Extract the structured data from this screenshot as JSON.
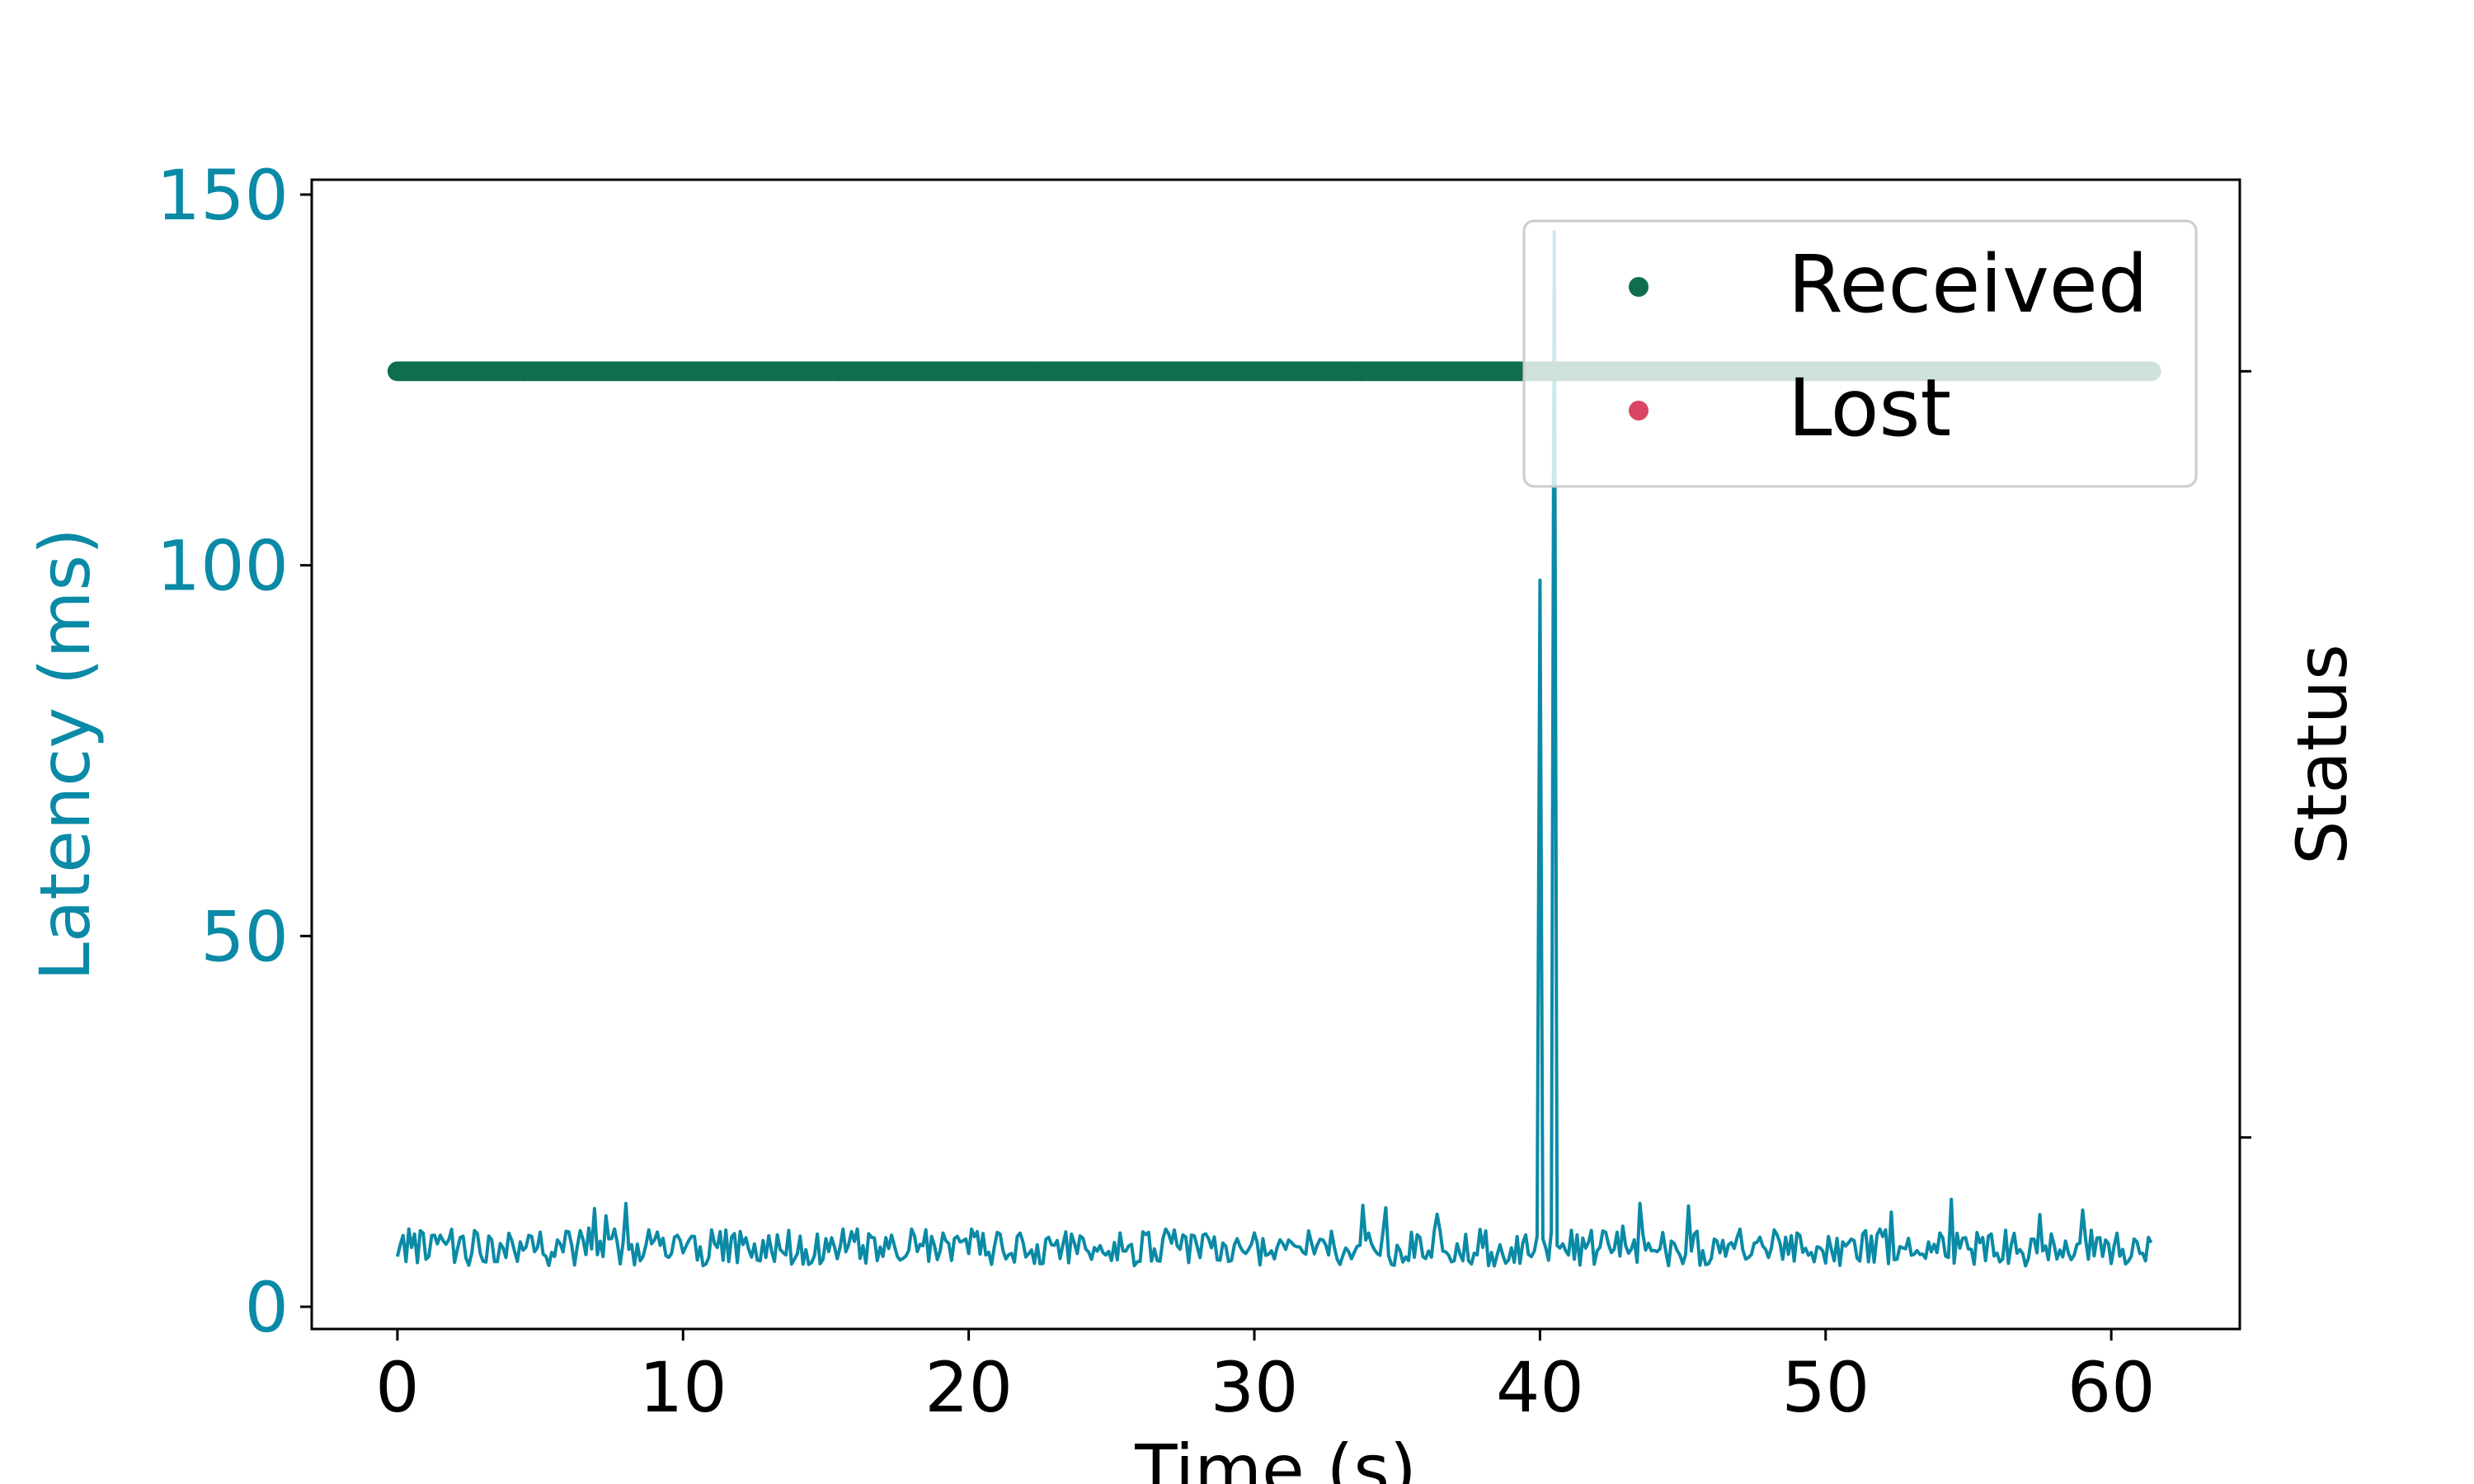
{
  "chart_data": {
    "type": "line",
    "xlabel": "Time (s)",
    "ylabel_left": "Latency (ms)",
    "ylabel_right": "Status",
    "xlim": [
      -3,
      64.5
    ],
    "ylim": [
      -3,
      152
    ],
    "x_ticks": [
      0,
      10,
      20,
      30,
      40,
      50,
      60
    ],
    "y_ticks": [
      0,
      50,
      100,
      150
    ],
    "status_ylim": [
      -0.25,
      1.25
    ],
    "status_ticks": [
      0,
      1
    ],
    "grid": false,
    "legend_position": "top-right",
    "colors": {
      "latency": "#0a8aa6",
      "received": "#0e6e4e",
      "lost": "#d94664",
      "axis": "#000000"
    },
    "series": [
      {
        "type": "line",
        "axis": "left",
        "color": "#0a8aa6",
        "summary": {
          "x_start": 0,
          "x_end": 61.4,
          "step": 0.1,
          "baseline": 8,
          "spread": 5,
          "spikes": [
            {
              "x": 40.0,
              "y": 98
            },
            {
              "x": 40.5,
              "y": 145
            }
          ]
        },
        "points": [
          [
            0,
            7
          ],
          [
            1,
            9
          ],
          [
            2,
            8
          ],
          [
            3,
            9
          ],
          [
            4,
            8
          ],
          [
            5,
            8
          ],
          [
            6,
            9
          ],
          [
            7,
            8
          ],
          [
            8,
            8
          ],
          [
            9,
            7
          ],
          [
            10,
            8
          ],
          [
            11,
            8
          ],
          [
            12,
            8
          ],
          [
            13,
            8
          ],
          [
            14,
            7
          ],
          [
            15,
            9
          ],
          [
            16,
            8
          ],
          [
            17,
            7
          ],
          [
            18,
            8
          ],
          [
            19,
            8
          ],
          [
            20,
            7
          ],
          [
            21,
            8
          ],
          [
            22,
            8
          ],
          [
            23,
            8
          ],
          [
            24,
            7
          ],
          [
            25,
            7
          ],
          [
            26,
            7
          ],
          [
            27,
            8
          ],
          [
            28,
            8
          ],
          [
            29,
            7
          ],
          [
            30,
            8
          ],
          [
            31,
            8
          ],
          [
            32,
            7
          ],
          [
            33,
            8
          ],
          [
            34,
            7
          ],
          [
            35,
            7
          ],
          [
            36,
            8
          ],
          [
            37,
            8
          ],
          [
            38,
            8
          ],
          [
            39,
            8
          ],
          [
            40.0,
            98
          ],
          [
            40.5,
            145
          ],
          [
            41,
            8
          ],
          [
            42,
            7
          ],
          [
            43,
            9
          ],
          [
            44,
            8
          ],
          [
            45,
            8
          ],
          [
            46,
            8
          ],
          [
            47,
            8
          ],
          [
            48,
            8
          ],
          [
            49,
            8
          ],
          [
            50,
            8
          ],
          [
            51,
            8
          ],
          [
            52,
            8
          ],
          [
            53,
            8
          ],
          [
            54,
            8
          ],
          [
            55,
            8
          ],
          [
            56,
            8
          ],
          [
            57,
            8
          ],
          [
            58,
            8
          ],
          [
            59,
            8
          ],
          [
            60,
            8
          ],
          [
            61,
            8
          ]
        ]
      },
      {
        "name": "Received",
        "type": "scatter",
        "axis": "right",
        "color": "#0e6e4e",
        "status": 1,
        "x_start": 0,
        "x_end": 61.4,
        "step": 0.1
      },
      {
        "name": "Lost",
        "type": "scatter",
        "axis": "right",
        "color": "#d94664",
        "status": 0,
        "count": 0
      }
    ],
    "legend": [
      {
        "label": "Received",
        "color": "#0e6e4e"
      },
      {
        "label": "Lost",
        "color": "#d94664"
      }
    ]
  }
}
